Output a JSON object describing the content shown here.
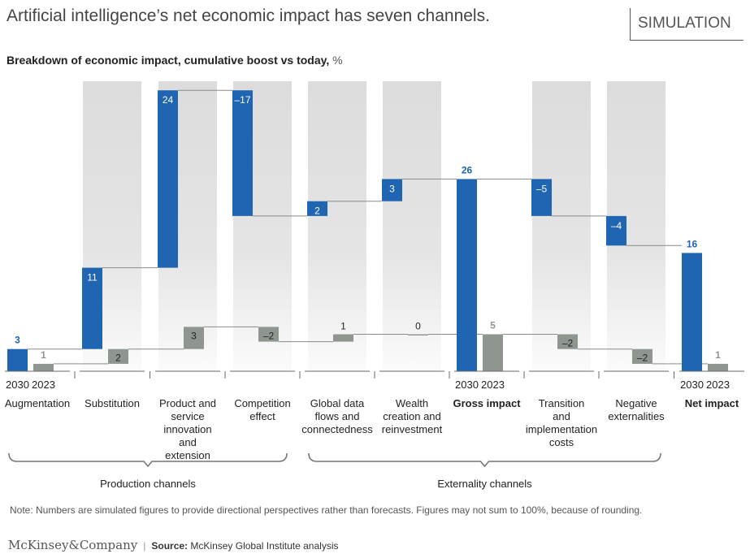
{
  "header": {
    "title": "Artificial intelligence’s net economic impact has seven channels.",
    "tag": "SIMULATION",
    "subtitle_bold": "Breakdown of economic impact, cumulative boost vs today,",
    "subtitle_unit": " %"
  },
  "note": "Note: Numbers are simulated figures to provide directional perspectives rather than forecasts. Figures may not sum to 100%, because of rounding.",
  "footer": {
    "logo": "McKinsey&Company",
    "separator": "|",
    "source_label": "Source:",
    "source_text": "McKinsey Global Institute analysis"
  },
  "colors": {
    "series_2030": "#1f65b2",
    "series_2023": "#8f9690",
    "shade": "#dcdcdc",
    "connector": "#8a8a8a"
  },
  "chart_data": {
    "type": "bar",
    "subtype": "waterfall",
    "ylim": [
      0,
      26
    ],
    "series_names": [
      "2030",
      "2023"
    ],
    "categories": [
      {
        "label": "Augmentation",
        "kind": "total",
        "shaded": false,
        "bold": false,
        "show_years": true,
        "v2030": 3,
        "v2023": 1,
        "l2030": "3",
        "l2023": "1"
      },
      {
        "label": "Substitution",
        "kind": "delta",
        "shaded": true,
        "bold": false,
        "show_years": false,
        "v2030": 11,
        "v2023": 2,
        "l2030": "11",
        "l2023": "2"
      },
      {
        "label": "Product and service innovation and extension",
        "kind": "delta",
        "shaded": true,
        "bold": false,
        "show_years": false,
        "v2030": 24,
        "v2023": 3,
        "l2030": "24",
        "l2023": "3"
      },
      {
        "label": "Competition effect",
        "kind": "delta",
        "shaded": true,
        "bold": false,
        "show_years": false,
        "v2030": -17,
        "v2023": -2,
        "l2030": "–17",
        "l2023": "–2"
      },
      {
        "label": "Global data flows and connectedness",
        "kind": "delta",
        "shaded": true,
        "bold": false,
        "show_years": false,
        "v2030": 2,
        "v2023": 1,
        "l2030": "2",
        "l2023": "1"
      },
      {
        "label": "Wealth creation and reinvestment",
        "kind": "delta",
        "shaded": true,
        "bold": false,
        "show_years": false,
        "v2030": 3,
        "v2023": 0,
        "l2030": "3",
        "l2023": "0"
      },
      {
        "label": "Gross impact",
        "kind": "total",
        "shaded": false,
        "bold": true,
        "show_years": true,
        "v2030": 26,
        "v2023": 5,
        "l2030": "26",
        "l2023": "5"
      },
      {
        "label": "Transition and implementation costs",
        "kind": "delta",
        "shaded": true,
        "bold": false,
        "show_years": false,
        "v2030": -5,
        "v2023": -2,
        "l2030": "–5",
        "l2023": "–2"
      },
      {
        "label": "Negative externalities",
        "kind": "delta",
        "shaded": true,
        "bold": false,
        "show_years": false,
        "v2030": -4,
        "v2023": -2,
        "l2030": "–4",
        "l2023": "–2"
      },
      {
        "label": "Net impact",
        "kind": "total",
        "shaded": false,
        "bold": true,
        "show_years": true,
        "v2030": 16,
        "v2023": 1,
        "l2030": "16",
        "l2023": "1"
      }
    ],
    "groups": [
      {
        "label": "Production channels",
        "from": 0,
        "to": 3
      },
      {
        "label": "Externality channels",
        "from": 4,
        "to": 8
      }
    ],
    "grid": false,
    "legend": "none"
  }
}
